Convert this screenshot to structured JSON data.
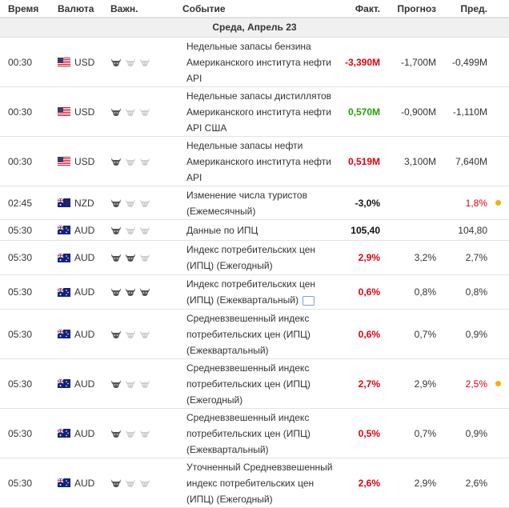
{
  "header": {
    "time": "Время",
    "currency": "Валюта",
    "importance": "Важн.",
    "event": "Событие",
    "actual": "Факт.",
    "forecast": "Прогноз",
    "previous": "Пред."
  },
  "day_label": "Среда, Апрель 23",
  "colors": {
    "negative": "#e2000f",
    "positive": "#26a000",
    "dot": "#f0b400",
    "day_bg": "#f0f0f0"
  },
  "rows": [
    {
      "time": "00:30",
      "currency": "USD",
      "flag": "us-flag",
      "importance": 1,
      "event_lines": [
        "Недельные запасы бензина",
        "Американского института нефти",
        "API"
      ],
      "actual": "-3,390M",
      "actual_state": "neg",
      "forecast": "-1,700M",
      "previous": "-0,499M",
      "prev_state": "",
      "dot": false,
      "comment": false
    },
    {
      "time": "00:30",
      "currency": "USD",
      "flag": "us-flag",
      "importance": 1,
      "event_lines": [
        "Недельные запасы дистиллятов",
        "Американского института нефти",
        "API США"
      ],
      "actual": "0,570M",
      "actual_state": "pos",
      "forecast": "-0,900M",
      "previous": "-1,110M",
      "prev_state": "",
      "dot": false,
      "comment": false
    },
    {
      "time": "00:30",
      "currency": "USD",
      "flag": "us-flag",
      "importance": 1,
      "event_lines": [
        "Недельные запасы нефти",
        "Американского института нефти",
        "API"
      ],
      "actual": "0,519M",
      "actual_state": "neg",
      "forecast": "3,100M",
      "previous": "7,640M",
      "prev_state": "",
      "dot": false,
      "comment": false
    },
    {
      "time": "02:45",
      "currency": "NZD",
      "flag": "nz-flag",
      "importance": 1,
      "event_lines": [
        "Изменение числа туристов",
        "(Ежемесячный)"
      ],
      "actual": "-3,0%",
      "actual_state": "neu",
      "forecast": "",
      "previous": "1,8%",
      "prev_state": "neg",
      "dot": true,
      "comment": false
    },
    {
      "time": "05:30",
      "currency": "AUD",
      "flag": "au-flag",
      "importance": 1,
      "event_lines": [
        "Данные по ИПЦ"
      ],
      "actual": "105,40",
      "actual_state": "neu",
      "forecast": "",
      "previous": "104,80",
      "prev_state": "",
      "dot": false,
      "comment": false
    },
    {
      "time": "05:30",
      "currency": "AUD",
      "flag": "au-flag",
      "importance": 2,
      "event_lines": [
        "Индекс потребительских цен",
        "(ИПЦ) (Ежегодный)"
      ],
      "actual": "2,9%",
      "actual_state": "neg",
      "forecast": "3,2%",
      "previous": "2,7%",
      "prev_state": "",
      "dot": false,
      "comment": false
    },
    {
      "time": "05:30",
      "currency": "AUD",
      "flag": "au-flag",
      "importance": 3,
      "event_lines": [
        "Индекс потребительских цен",
        "(ИПЦ) (Ежеквартальный)"
      ],
      "actual": "0,6%",
      "actual_state": "neg",
      "forecast": "0,8%",
      "previous": "0,8%",
      "prev_state": "",
      "dot": false,
      "comment": true
    },
    {
      "time": "05:30",
      "currency": "AUD",
      "flag": "au-flag",
      "importance": 1,
      "event_lines": [
        "Средневзвешенный индекс",
        "потребительских цен (ИПЦ)",
        "(Ежеквартальный)"
      ],
      "actual": "0,6%",
      "actual_state": "neg",
      "forecast": "0,7%",
      "previous": "0,9%",
      "prev_state": "",
      "dot": false,
      "comment": false
    },
    {
      "time": "05:30",
      "currency": "AUD",
      "flag": "au-flag",
      "importance": 1,
      "event_lines": [
        "Средневзвешенный индекс",
        "потребительских цен (ИПЦ)",
        "(Ежегодный)"
      ],
      "actual": "2,7%",
      "actual_state": "neg",
      "forecast": "2,9%",
      "previous": "2,5%",
      "prev_state": "neg",
      "dot": true,
      "comment": false
    },
    {
      "time": "05:30",
      "currency": "AUD",
      "flag": "au-flag",
      "importance": 1,
      "event_lines": [
        "Средневзвешенный индекс",
        "потребительских цен (ИПЦ)",
        "(Ежеквартальный)"
      ],
      "actual": "0,5%",
      "actual_state": "neg",
      "forecast": "0,7%",
      "previous": "0,9%",
      "prev_state": "",
      "dot": false,
      "comment": false
    },
    {
      "time": "05:30",
      "currency": "AUD",
      "flag": "au-flag",
      "importance": 1,
      "event_lines": [
        "Уточненный Средневзвешенный",
        "индекс потребительских цен",
        "(ИПЦ) (Ежегодный)"
      ],
      "actual": "2,6%",
      "actual_state": "neg",
      "forecast": "2,9%",
      "previous": "2,6%",
      "prev_state": "",
      "dot": false,
      "comment": false
    }
  ]
}
